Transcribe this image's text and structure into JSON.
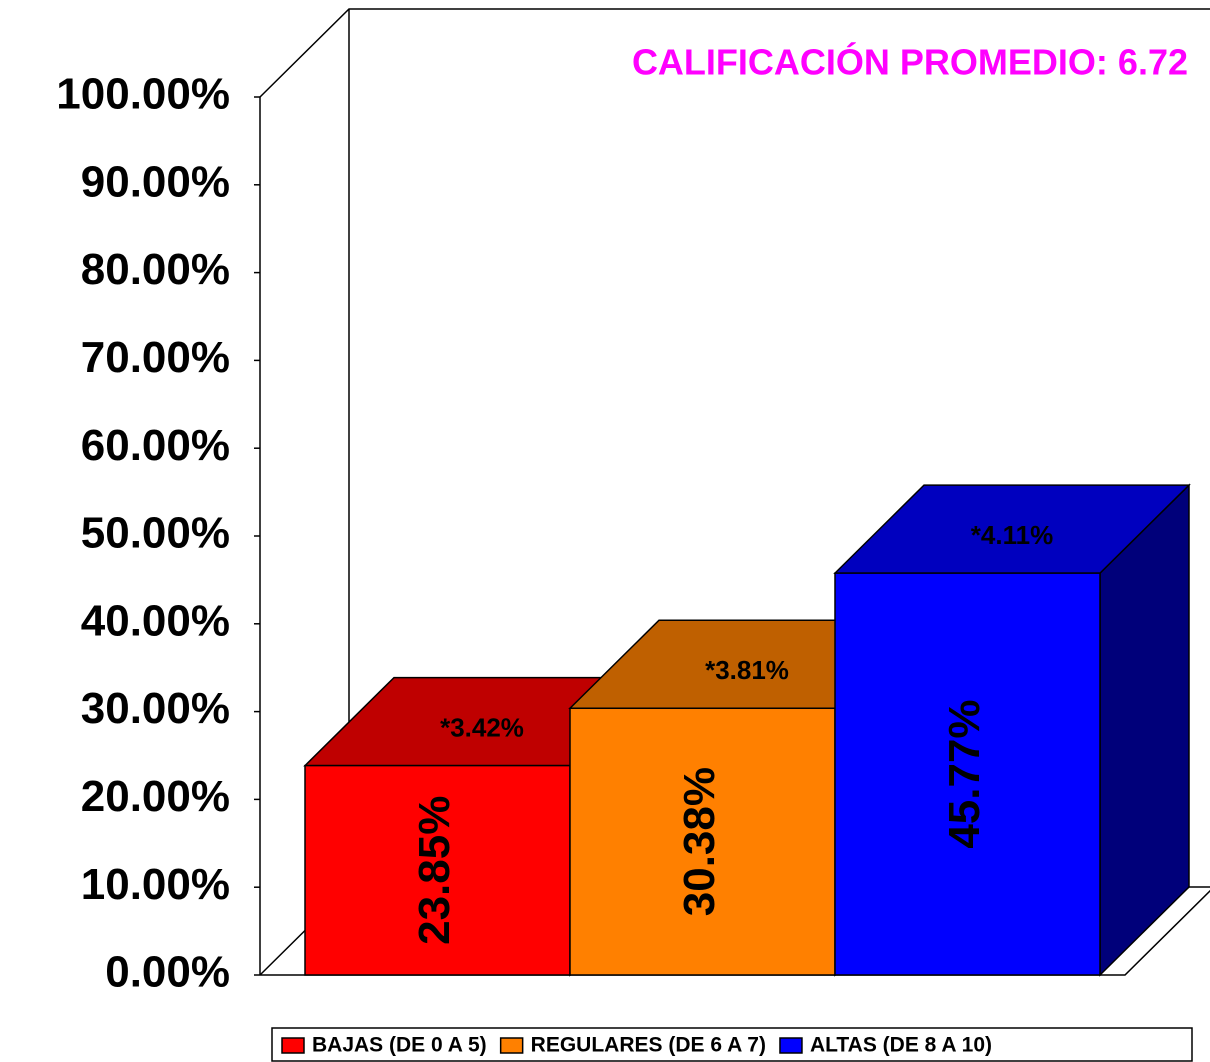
{
  "chart_data": {
    "type": "bar3d",
    "title": "CALIFICACIÓN PROMEDIO: 6.72",
    "categories": [
      null
    ],
    "series": [
      {
        "name": "BAJAS (DE 0 A 5)",
        "color": "#ff0000",
        "values": [
          23.85
        ],
        "value_labels": [
          "23.85%"
        ]
      },
      {
        "name": "REGULARES (DE 6 A 7)",
        "color": "#ff8000",
        "values": [
          30.38
        ],
        "value_labels": [
          "30.38%"
        ]
      },
      {
        "name": "ALTAS (DE 8 A 10)",
        "color": "#0000ff",
        "values": [
          45.77
        ],
        "value_labels": [
          "45.77%"
        ]
      }
    ],
    "annotations": [
      "*3.42%",
      "*3.81%",
      "*4.11%"
    ],
    "ylim": [
      0,
      100
    ],
    "yticks": [
      {
        "value": 0,
        "label": "0.00%"
      },
      {
        "value": 10,
        "label": "10.00%"
      },
      {
        "value": 20,
        "label": "20.00%"
      },
      {
        "value": 30,
        "label": "30.00%"
      },
      {
        "value": 40,
        "label": "40.00%"
      },
      {
        "value": 50,
        "label": "50.00%"
      },
      {
        "value": 60,
        "label": "60.00%"
      },
      {
        "value": 70,
        "label": "70.00%"
      },
      {
        "value": 80,
        "label": "80.00%"
      },
      {
        "value": 90,
        "label": "90.00%"
      },
      {
        "value": 100,
        "label": "100.00%"
      }
    ],
    "legend": "bottom"
  }
}
